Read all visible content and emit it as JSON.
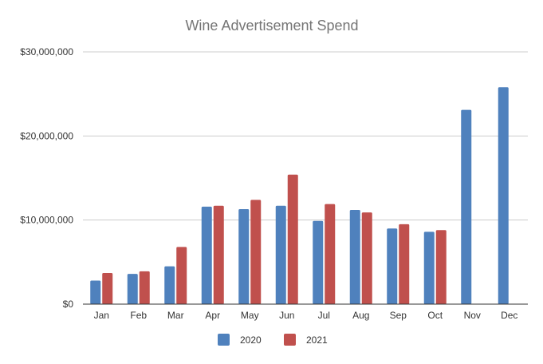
{
  "chart_data": {
    "type": "bar",
    "title": "Wine Advertisement Spend",
    "xlabel": "",
    "ylabel": "",
    "categories": [
      "Jan",
      "Feb",
      "Mar",
      "Apr",
      "May",
      "Jun",
      "Jul",
      "Aug",
      "Sep",
      "Oct",
      "Nov",
      "Dec"
    ],
    "ylim": [
      0,
      30000000
    ],
    "yticks": [
      0,
      10000000,
      20000000,
      30000000
    ],
    "ytick_labels": [
      "$0",
      "$10,000,000",
      "$20,000,000",
      "$30,000,000"
    ],
    "grid": true,
    "legend_position": "bottom",
    "series": [
      {
        "name": "2020",
        "color": "#4f81bd",
        "values": [
          2800000,
          3600000,
          4500000,
          11600000,
          11300000,
          11700000,
          9900000,
          11200000,
          9000000,
          8600000,
          23100000,
          25800000
        ]
      },
      {
        "name": "2021",
        "color": "#c0504d",
        "values": [
          3700000,
          3900000,
          6800000,
          11700000,
          12400000,
          15400000,
          11900000,
          10900000,
          9500000,
          8800000,
          null,
          null
        ]
      }
    ]
  }
}
